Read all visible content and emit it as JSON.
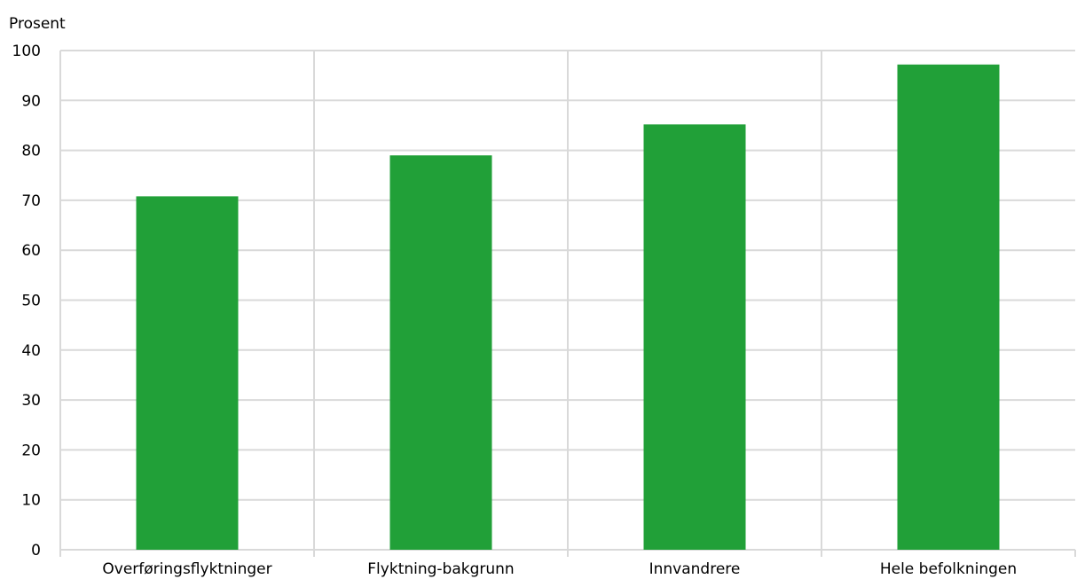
{
  "chart_data": {
    "type": "bar",
    "ylabel": "Prosent",
    "categories": [
      "Overføringsflyktninger",
      "Flyktning-bakgrunn",
      "Innvandrere",
      "Hele befolkningen"
    ],
    "values": [
      70.8,
      79.0,
      85.2,
      97.2
    ],
    "ylim": [
      0,
      100
    ],
    "yticks": [
      0,
      10,
      20,
      30,
      40,
      50,
      60,
      70,
      80,
      90,
      100
    ],
    "grid": true,
    "legend": "none",
    "colors": {
      "bar": "#21a038"
    }
  }
}
